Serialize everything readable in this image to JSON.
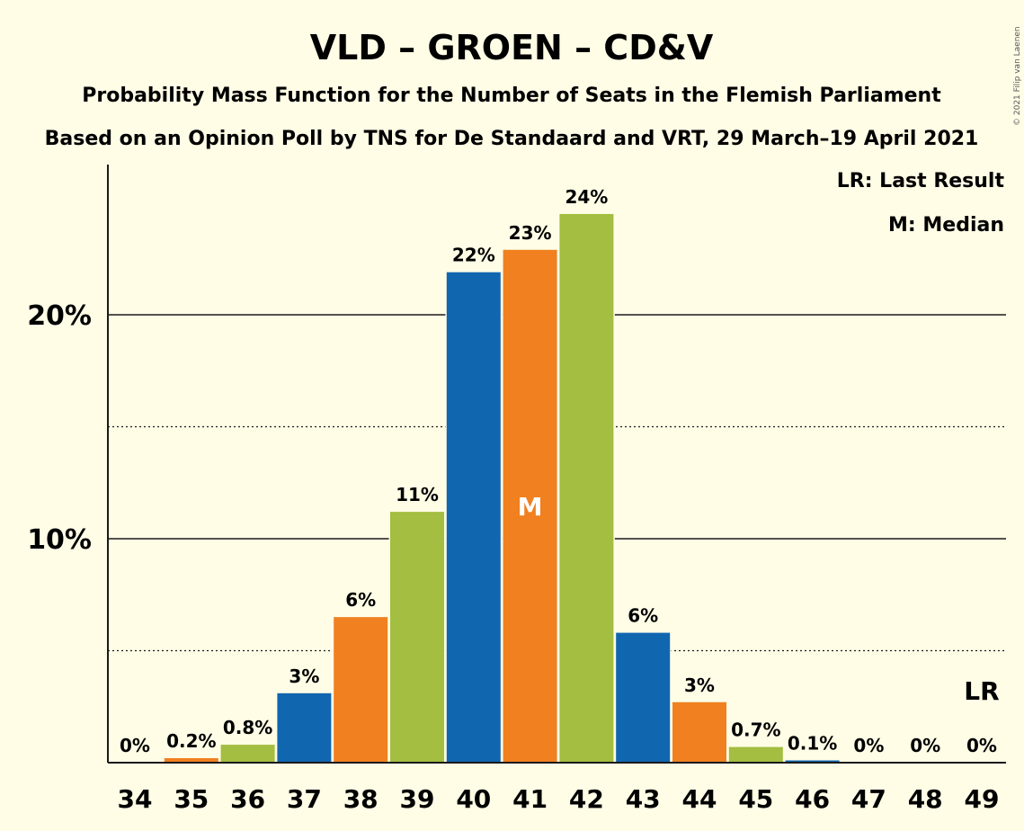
{
  "chart_data": {
    "type": "bar",
    "title": "VLD – GROEN – CD&V",
    "subtitle_1": "Probability Mass Function for the Number of Seats in the Flemish Parliament",
    "subtitle_2": "Based on an Opinion Poll by TNS for De Standaard and VRT, 29 March–19 April 2021",
    "categories": [
      "34",
      "35",
      "36",
      "37",
      "38",
      "39",
      "40",
      "41",
      "42",
      "43",
      "44",
      "45",
      "46",
      "47",
      "48",
      "49"
    ],
    "values": [
      0,
      0.2,
      0.8,
      3.1,
      6.5,
      11.2,
      21.9,
      22.9,
      24.5,
      5.8,
      2.7,
      0.7,
      0.1,
      0,
      0,
      0
    ],
    "data_labels": [
      "0%",
      "0.2%",
      "0.8%",
      "3%",
      "6%",
      "11%",
      "22%",
      "23%",
      "24%",
      "6%",
      "3%",
      "0.7%",
      "0.1%",
      "0%",
      "0%",
      "0%"
    ],
    "ylim": [
      0,
      26.5
    ],
    "yticks": [
      {
        "value": 10,
        "label": "10%"
      },
      {
        "value": 20,
        "label": "20%"
      }
    ],
    "minor_gridlines": [
      5,
      15
    ],
    "legend": {
      "last_result": "LR: Last Result",
      "median": "M: Median",
      "placement": "top-right"
    },
    "median_marker": {
      "category": "41",
      "text": "M"
    },
    "last_result_marker": {
      "category": "49",
      "text": "LR"
    },
    "copyright": "© 2021 Filip van Laenen",
    "colors": {
      "blue": "#1166b0",
      "green": "#a3be40",
      "orange": "#f08020",
      "background": "#fffde6"
    },
    "bar_color_cycle": [
      "blue",
      "orange",
      "green"
    ]
  }
}
